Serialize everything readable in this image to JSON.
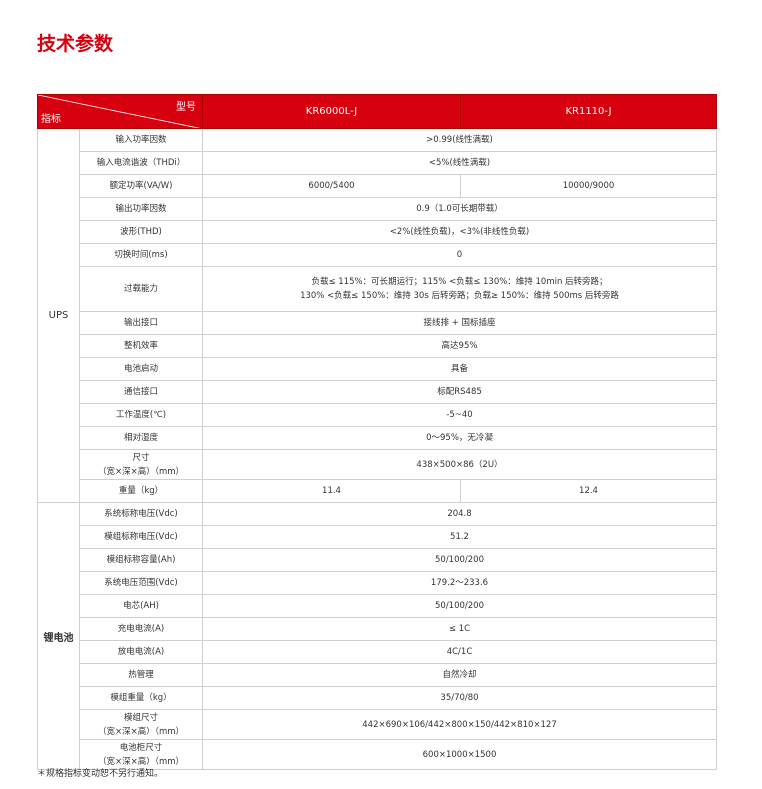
{
  "title": "技术参数",
  "table": {
    "header": {
      "model_label": "型号",
      "index_label": "指标",
      "models": [
        "KR6000L-J",
        "KR1110-J"
      ]
    },
    "groups": [
      {
        "name": "UPS",
        "rows": [
          {
            "param": [
              "输入功率因数"
            ],
            "values": [
              [
                ">0.99(线性满载)"
              ]
            ]
          },
          {
            "param": [
              "输入电流谐波（THDi）"
            ],
            "values": [
              [
                "<5%(线性满载)"
              ]
            ]
          },
          {
            "param": [
              "额定功率(VA/W)"
            ],
            "values": [
              [
                "6000/5400"
              ],
              [
                "10000/9000"
              ]
            ]
          },
          {
            "param": [
              "输出功率因数"
            ],
            "values": [
              [
                "0.9（1.0可长期带载）"
              ]
            ]
          },
          {
            "param": [
              "波形(THD)"
            ],
            "values": [
              [
                "<2%(线性负载)，<3%(非线性负载)"
              ]
            ]
          },
          {
            "param": [
              "切换时间(ms)"
            ],
            "values": [
              [
                "0"
              ]
            ]
          },
          {
            "param": [
              "过载能力"
            ],
            "values": [
              [
                "负载≤ 115%：可长期运行；115% <负载≤ 130%：维持 10min 后转旁路；",
                "130% <负载≤ 150%：维持 30s 后转旁路；负载≥ 150%：维持 500ms 后转旁路"
              ]
            ]
          },
          {
            "param": [
              "输出接口"
            ],
            "values": [
              [
                "接线排 + 国标插座"
              ]
            ]
          },
          {
            "param": [
              "整机效率"
            ],
            "values": [
              [
                "高达95%"
              ]
            ]
          },
          {
            "param": [
              "电池启动"
            ],
            "values": [
              [
                "具备"
              ]
            ]
          },
          {
            "param": [
              "通信接口"
            ],
            "values": [
              [
                "标配RS485"
              ]
            ]
          },
          {
            "param": [
              "工作温度(℃)"
            ],
            "values": [
              [
                "-5~40"
              ]
            ]
          },
          {
            "param": [
              "相对湿度"
            ],
            "values": [
              [
                "0～95%，无冷凝"
              ]
            ]
          },
          {
            "param": [
              "尺寸",
              "（宽×深×高）（mm）"
            ],
            "values": [
              [
                "438×500×86（2U）"
              ]
            ]
          },
          {
            "param": [
              "重量（kg）"
            ],
            "values": [
              [
                "11.4"
              ],
              [
                "12.4"
              ]
            ]
          }
        ]
      },
      {
        "name": "锂电池",
        "rows": [
          {
            "param": [
              "系统标称电压(Vdc)"
            ],
            "values": [
              [
                "204.8"
              ]
            ]
          },
          {
            "param": [
              "模组标称电压(Vdc)"
            ],
            "values": [
              [
                "51.2"
              ]
            ]
          },
          {
            "param": [
              "模组标称容量(Ah)"
            ],
            "values": [
              [
                "50/100/200"
              ]
            ]
          },
          {
            "param": [
              "系统电压范围(Vdc)"
            ],
            "values": [
              [
                "179.2～233.6"
              ]
            ]
          },
          {
            "param": [
              "电芯(AH)"
            ],
            "values": [
              [
                "50/100/200"
              ]
            ]
          },
          {
            "param": [
              "充电电流(A)"
            ],
            "values": [
              [
                "≤ 1C"
              ]
            ]
          },
          {
            "param": [
              "放电电流(A)"
            ],
            "values": [
              [
                "4C/1C"
              ]
            ]
          },
          {
            "param": [
              "热管理"
            ],
            "values": [
              [
                "自然冷却"
              ]
            ]
          },
          {
            "param": [
              "模组重量（kg）"
            ],
            "values": [
              [
                "35/70/80"
              ]
            ]
          },
          {
            "param": [
              "模组尺寸",
              "（宽×深×高）（mm）"
            ],
            "values": [
              [
                "442×690×106/442×800×150/442×810×127"
              ]
            ]
          },
          {
            "param": [
              "电池柜尺寸",
              "（宽×深×高）（mm）"
            ],
            "values": [
              [
                "600×1000×1500"
              ]
            ]
          }
        ]
      }
    ]
  },
  "footnote": "＊规格指标变动恕不另行通知。"
}
